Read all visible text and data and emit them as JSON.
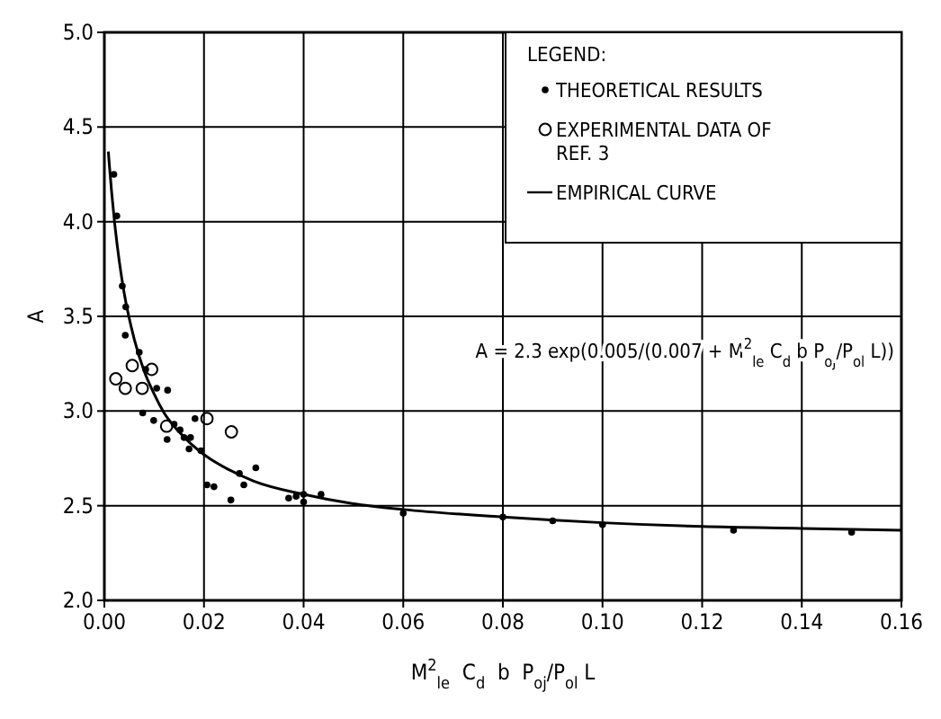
{
  "chart_data": {
    "type": "scatter",
    "xlabel": "M$^{2}$$_{le}$  C$_{d}$  b  P$_{oj}$/P$_{ol}$ L",
    "ylabel": "A",
    "legend_title": "LEGEND:",
    "legend": "top right",
    "grid": true,
    "xlim": [
      0,
      0.16
    ],
    "ylim": [
      2.0,
      5.0
    ],
    "xticks": [
      {
        "value": 0,
        "label": "0.00"
      },
      {
        "value": 0.02,
        "label": "0.02"
      },
      {
        "value": 0.04,
        "label": "0.04"
      },
      {
        "value": 0.06,
        "label": "0.06"
      },
      {
        "value": 0.08,
        "label": "0.08"
      },
      {
        "value": 0.1,
        "label": "0.10"
      },
      {
        "value": 0.12,
        "label": "0.12"
      },
      {
        "value": 0.14,
        "label": "0.14"
      },
      {
        "value": 0.16,
        "label": "0.16"
      }
    ],
    "yticks": [
      {
        "value": 2,
        "label": "2.0"
      },
      {
        "value": 2.5,
        "label": "2.5"
      },
      {
        "value": 3,
        "label": "3.0"
      },
      {
        "value": 3.5,
        "label": "3.5"
      },
      {
        "value": 4,
        "label": "4.0"
      },
      {
        "value": 4.5,
        "label": "4.5"
      },
      {
        "value": 5,
        "label": "5.0"
      }
    ],
    "annotations": [
      "A = 2.3 exp(0.005/(0.007 + M$^{2}$$_{le}$ C$_{d}$ b P$_{oj}$/P$_{ol}$ L))"
    ],
    "series": [
      {
        "name": "THEORETICAL RESULTS",
        "marker": "circle",
        "color": "#000000",
        "x": [
          0.0019,
          0.0025,
          0.0036,
          0.0043,
          0.0042,
          0.007,
          0.0083,
          0.0105,
          0.0127,
          0.0077,
          0.0099,
          0.0126,
          0.014,
          0.0152,
          0.016,
          0.0173,
          0.017,
          0.0182,
          0.0194,
          0.0206,
          0.022,
          0.0254,
          0.0271,
          0.028,
          0.0304,
          0.037,
          0.0385,
          0.04,
          0.04,
          0.0435,
          0.06,
          0.08,
          0.09,
          0.1,
          0.1263,
          0.15
        ],
        "values": [
          4.25,
          4.03,
          3.66,
          3.55,
          3.4,
          3.31,
          3.22,
          3.12,
          3.11,
          2.99,
          2.95,
          2.85,
          2.93,
          2.9,
          2.86,
          2.86,
          2.8,
          2.96,
          2.79,
          2.61,
          2.6,
          2.53,
          2.67,
          2.61,
          2.7,
          2.54,
          2.55,
          2.56,
          2.52,
          2.56,
          2.46,
          2.44,
          2.42,
          2.4,
          2.37,
          2.36
        ]
      },
      {
        "name": "EXPERIMENTAL DATA OF REF. 3",
        "marker": "circle-open",
        "color": "#000000",
        "x": [
          0.0023,
          0.0042,
          0.0056,
          0.0076,
          0.0095,
          0.0125,
          0.0206,
          0.0255
        ],
        "values": [
          3.17,
          3.12,
          3.24,
          3.12,
          3.22,
          2.92,
          2.96,
          2.89
        ]
      },
      {
        "name": "EMPIRICAL CURVE",
        "type": "line",
        "marker": "none",
        "line_style": "solid",
        "color": "#000000",
        "x": [
          0.0008,
          0.001,
          0.002,
          0.003,
          0.004,
          0.006,
          0.008,
          0.01,
          0.012,
          0.015,
          0.02,
          0.025,
          0.03,
          0.04,
          0.05,
          0.06,
          0.08,
          0.1,
          0.12,
          0.14,
          0.16
        ],
        "values": [
          4.37,
          4.3,
          4.01,
          3.79,
          3.62,
          3.38,
          3.21,
          3.09,
          2.99,
          2.89,
          2.77,
          2.69,
          2.63,
          2.56,
          2.51,
          2.48,
          2.44,
          2.41,
          2.39,
          2.38,
          2.37
        ]
      }
    ]
  }
}
